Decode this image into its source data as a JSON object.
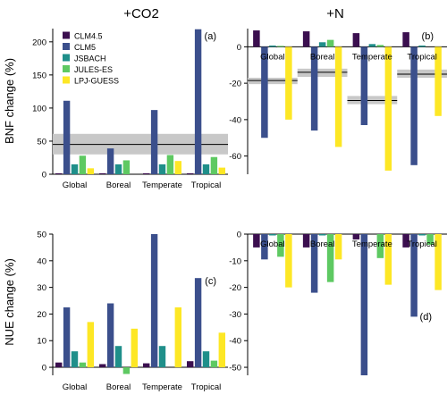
{
  "column_titles": [
    "+CO2",
    "+N"
  ],
  "ylabels": [
    "BNF change (%)",
    "NUE change (%)"
  ],
  "legend": [
    {
      "name": "CLM4.5",
      "color": "#3b0f4f"
    },
    {
      "name": "CLM5",
      "color": "#3b4f8c"
    },
    {
      "name": "JSBACH",
      "color": "#1f8f8a"
    },
    {
      "name": "JULES-ES",
      "color": "#5ec962"
    },
    {
      "name": "LPJ-GUESS",
      "color": "#fde725"
    }
  ],
  "chart_data": [
    {
      "type": "bar",
      "panel": "(a)",
      "categories": [
        "Global",
        "Boreal",
        "Temperate",
        "Tropical"
      ],
      "ylim": [
        0,
        220
      ],
      "yticks": [
        0,
        50,
        100,
        150,
        200
      ],
      "series": [
        {
          "name": "CLM4.5",
          "values": [
            1.5,
            1.5,
            1.5,
            1.5
          ]
        },
        {
          "name": "CLM5",
          "values": [
            111,
            39,
            97,
            219
          ]
        },
        {
          "name": "JSBACH",
          "values": [
            15,
            15,
            15,
            15
          ]
        },
        {
          "name": "JULES-ES",
          "values": [
            28,
            21,
            29,
            26
          ]
        },
        {
          "name": "LPJ-GUESS",
          "values": [
            9,
            0,
            20,
            10
          ]
        }
      ],
      "references": [
        {
          "scope": "all",
          "value": 45,
          "band": [
            30,
            61
          ]
        }
      ]
    },
    {
      "type": "bar",
      "panel": "(b)",
      "categories": [
        "Global",
        "Boreal",
        "Temperate",
        "Tropical"
      ],
      "ylim": [
        -70,
        10
      ],
      "yticks": [
        -60,
        -40,
        -20,
        0
      ],
      "series": [
        {
          "name": "CLM4.5",
          "values": [
            9,
            8.5,
            7.5,
            8
          ]
        },
        {
          "name": "CLM5",
          "values": [
            -50,
            -46,
            -43,
            -65
          ]
        },
        {
          "name": "JSBACH",
          "values": [
            0.7,
            2.5,
            1.5,
            0.7
          ]
        },
        {
          "name": "JULES-ES",
          "values": [
            0.5,
            3.8,
            1,
            0
          ]
        },
        {
          "name": "LPJ-GUESS",
          "values": [
            -40,
            -55,
            -68,
            -38
          ]
        }
      ],
      "references": [
        {
          "scope": "Global",
          "value": -18.5,
          "band": [
            -20.5,
            -17
          ]
        },
        {
          "scope": "Boreal",
          "value": -14,
          "band": [
            -16.5,
            -12
          ]
        },
        {
          "scope": "Temperate",
          "value": -29.5,
          "band": [
            -31.5,
            -27
          ]
        },
        {
          "scope": "Tropical",
          "value": -15,
          "band": [
            -17,
            -12.5
          ]
        }
      ]
    },
    {
      "type": "bar",
      "panel": "(c)",
      "categories": [
        "Global",
        "Boreal",
        "Temperate",
        "Tropical"
      ],
      "ylim": [
        -3,
        50
      ],
      "yticks": [
        0,
        10,
        20,
        30,
        40,
        50
      ],
      "series": [
        {
          "name": "CLM4.5",
          "values": [
            1.8,
            1.2,
            1.5,
            2.3
          ]
        },
        {
          "name": "CLM5",
          "values": [
            22.5,
            24,
            50,
            33.5
          ]
        },
        {
          "name": "JSBACH",
          "values": [
            6,
            8,
            8,
            6
          ]
        },
        {
          "name": "JULES-ES",
          "values": [
            1.8,
            -2.5,
            0,
            2.5
          ]
        },
        {
          "name": "LPJ-GUESS",
          "values": [
            17,
            14.5,
            22.5,
            13
          ]
        }
      ]
    },
    {
      "type": "bar",
      "panel": "(d)",
      "categories": [
        "Global",
        "Boreal",
        "Temperate",
        "Tropical"
      ],
      "ylim": [
        -53,
        0
      ],
      "yticks": [
        -50,
        -40,
        -30,
        -20,
        -10,
        0
      ],
      "series": [
        {
          "name": "CLM4.5",
          "values": [
            -5,
            -5,
            -2,
            -5
          ]
        },
        {
          "name": "CLM5",
          "values": [
            -9.5,
            -22,
            -53,
            -31
          ]
        },
        {
          "name": "JSBACH",
          "values": [
            -0.5,
            -0.5,
            0,
            -0.5
          ]
        },
        {
          "name": "JULES-ES",
          "values": [
            -8.5,
            -18,
            -9,
            -4
          ]
        },
        {
          "name": "LPJ-GUESS",
          "values": [
            -20,
            -9.5,
            -19,
            -21
          ]
        }
      ]
    }
  ]
}
